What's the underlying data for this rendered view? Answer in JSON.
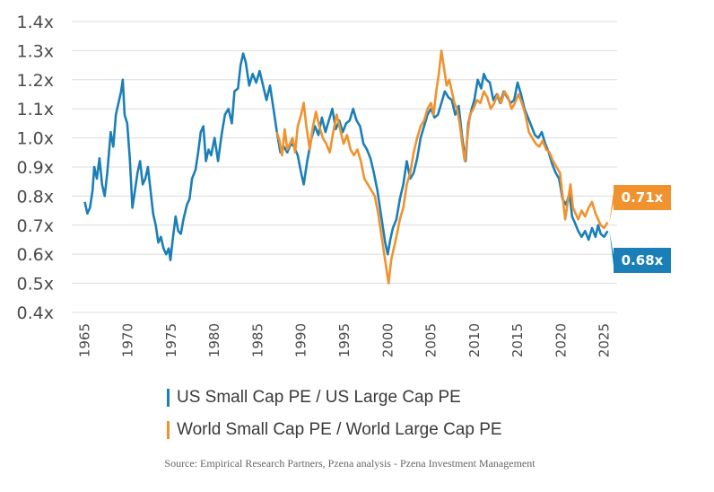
{
  "chart_data": {
    "type": "line",
    "title": "",
    "xlabel": "",
    "ylabel": "",
    "xlim": [
      1963.5,
      2026.5
    ],
    "ylim": [
      0.4,
      1.4
    ],
    "y_ticks": [
      0.4,
      0.5,
      0.6,
      0.7,
      0.8,
      0.9,
      1.0,
      1.1,
      1.2,
      1.3,
      1.4
    ],
    "y_tick_labels": [
      "0.4x",
      "0.5x",
      "0.6x",
      "0.7x",
      "0.8x",
      "0.9x",
      "1.0x",
      "1.1x",
      "1.2x",
      "1.3x",
      "1.4x"
    ],
    "x_ticks": [
      1965,
      1970,
      1975,
      1980,
      1985,
      1990,
      1995,
      2000,
      2005,
      2010,
      2015,
      2020,
      2025
    ],
    "x_tick_labels": [
      "1965",
      "1970",
      "1975",
      "1980",
      "1985",
      "1990",
      "1995",
      "2000",
      "2005",
      "2010",
      "2015",
      "2020",
      "2025"
    ],
    "grid": true,
    "series": [
      {
        "name": "US Small Cap PE / US Large Cap PE",
        "color": "#1b7fb7",
        "points": [
          [
            1965.0,
            0.78
          ],
          [
            1965.3,
            0.74
          ],
          [
            1965.6,
            0.76
          ],
          [
            1965.9,
            0.82
          ],
          [
            1966.1,
            0.9
          ],
          [
            1966.4,
            0.86
          ],
          [
            1966.7,
            0.93
          ],
          [
            1967.0,
            0.84
          ],
          [
            1967.3,
            0.8
          ],
          [
            1967.6,
            0.88
          ],
          [
            1968.0,
            1.02
          ],
          [
            1968.3,
            0.97
          ],
          [
            1968.6,
            1.08
          ],
          [
            1968.9,
            1.12
          ],
          [
            1969.2,
            1.16
          ],
          [
            1969.4,
            1.2
          ],
          [
            1969.6,
            1.08
          ],
          [
            1969.9,
            1.05
          ],
          [
            1970.2,
            0.93
          ],
          [
            1970.5,
            0.76
          ],
          [
            1970.8,
            0.82
          ],
          [
            1971.1,
            0.88
          ],
          [
            1971.4,
            0.92
          ],
          [
            1971.7,
            0.84
          ],
          [
            1972.0,
            0.86
          ],
          [
            1972.3,
            0.9
          ],
          [
            1972.6,
            0.82
          ],
          [
            1972.9,
            0.74
          ],
          [
            1973.2,
            0.7
          ],
          [
            1973.5,
            0.64
          ],
          [
            1973.8,
            0.66
          ],
          [
            1974.1,
            0.62
          ],
          [
            1974.4,
            0.6
          ],
          [
            1974.7,
            0.62
          ],
          [
            1974.9,
            0.58
          ],
          [
            1975.2,
            0.66
          ],
          [
            1975.5,
            0.73
          ],
          [
            1975.8,
            0.68
          ],
          [
            1976.1,
            0.67
          ],
          [
            1976.4,
            0.72
          ],
          [
            1976.8,
            0.77
          ],
          [
            1977.1,
            0.79
          ],
          [
            1977.4,
            0.86
          ],
          [
            1977.8,
            0.89
          ],
          [
            1978.1,
            0.95
          ],
          [
            1978.4,
            1.02
          ],
          [
            1978.7,
            1.04
          ],
          [
            1979.0,
            0.92
          ],
          [
            1979.3,
            0.96
          ],
          [
            1979.6,
            0.94
          ],
          [
            1980.0,
            1.0
          ],
          [
            1980.4,
            0.92
          ],
          [
            1980.8,
            1.01
          ],
          [
            1981.2,
            1.08
          ],
          [
            1981.6,
            1.1
          ],
          [
            1982.0,
            1.05
          ],
          [
            1982.3,
            1.16
          ],
          [
            1982.7,
            1.17
          ],
          [
            1983.0,
            1.25
          ],
          [
            1983.3,
            1.29
          ],
          [
            1983.6,
            1.26
          ],
          [
            1984.0,
            1.18
          ],
          [
            1984.4,
            1.22
          ],
          [
            1984.8,
            1.19
          ],
          [
            1985.2,
            1.23
          ],
          [
            1985.6,
            1.18
          ],
          [
            1986.0,
            1.13
          ],
          [
            1986.4,
            1.18
          ],
          [
            1986.8,
            1.1
          ],
          [
            1987.2,
            1.02
          ],
          [
            1987.6,
            0.95
          ],
          [
            1988.0,
            0.97
          ],
          [
            1988.4,
            0.95
          ],
          [
            1988.8,
            0.98
          ],
          [
            1989.2,
            0.97
          ],
          [
            1989.6,
            0.94
          ],
          [
            1990.0,
            0.88
          ],
          [
            1990.3,
            0.84
          ],
          [
            1990.7,
            0.92
          ],
          [
            1991.2,
            1.0
          ],
          [
            1991.6,
            1.04
          ],
          [
            1992.0,
            1.01
          ],
          [
            1992.4,
            1.07
          ],
          [
            1992.8,
            1.02
          ],
          [
            1993.2,
            1.06
          ],
          [
            1993.6,
            1.1
          ],
          [
            1994.0,
            1.03
          ],
          [
            1994.4,
            1.06
          ],
          [
            1994.8,
            1.02
          ],
          [
            1995.2,
            1.05
          ],
          [
            1995.6,
            1.06
          ],
          [
            1996.0,
            1.1
          ],
          [
            1996.4,
            1.06
          ],
          [
            1996.8,
            1.04
          ],
          [
            1997.2,
            0.98
          ],
          [
            1997.6,
            0.96
          ],
          [
            1998.0,
            0.93
          ],
          [
            1998.4,
            0.88
          ],
          [
            1998.8,
            0.82
          ],
          [
            1999.1,
            0.76
          ],
          [
            1999.4,
            0.7
          ],
          [
            1999.7,
            0.64
          ],
          [
            2000.0,
            0.6
          ],
          [
            2000.3,
            0.65
          ],
          [
            2000.6,
            0.69
          ],
          [
            2001.0,
            0.72
          ],
          [
            2001.4,
            0.79
          ],
          [
            2001.8,
            0.84
          ],
          [
            2002.2,
            0.92
          ],
          [
            2002.6,
            0.86
          ],
          [
            2003.0,
            0.88
          ],
          [
            2003.4,
            0.93
          ],
          [
            2003.8,
            1.0
          ],
          [
            2004.2,
            1.04
          ],
          [
            2004.6,
            1.08
          ],
          [
            2005.0,
            1.1
          ],
          [
            2005.4,
            1.07
          ],
          [
            2005.8,
            1.08
          ],
          [
            2006.2,
            1.12
          ],
          [
            2006.6,
            1.16
          ],
          [
            2007.0,
            1.14
          ],
          [
            2007.4,
            1.13
          ],
          [
            2007.8,
            1.08
          ],
          [
            2008.2,
            1.11
          ],
          [
            2008.6,
            1.0
          ],
          [
            2009.0,
            0.92
          ],
          [
            2009.3,
            1.05
          ],
          [
            2009.7,
            1.1
          ],
          [
            2010.0,
            1.13
          ],
          [
            2010.4,
            1.2
          ],
          [
            2010.8,
            1.17
          ],
          [
            2011.1,
            1.22
          ],
          [
            2011.4,
            1.2
          ],
          [
            2011.8,
            1.19
          ],
          [
            2012.2,
            1.13
          ],
          [
            2012.6,
            1.15
          ],
          [
            2013.0,
            1.12
          ],
          [
            2013.4,
            1.16
          ],
          [
            2013.8,
            1.14
          ],
          [
            2014.2,
            1.12
          ],
          [
            2014.6,
            1.13
          ],
          [
            2015.0,
            1.19
          ],
          [
            2015.4,
            1.15
          ],
          [
            2015.8,
            1.1
          ],
          [
            2016.2,
            1.07
          ],
          [
            2016.6,
            1.04
          ],
          [
            2017.0,
            1.01
          ],
          [
            2017.4,
            1.0
          ],
          [
            2017.8,
            1.02
          ],
          [
            2018.2,
            0.98
          ],
          [
            2018.6,
            0.95
          ],
          [
            2019.0,
            0.91
          ],
          [
            2019.4,
            0.88
          ],
          [
            2019.8,
            0.86
          ],
          [
            2020.2,
            0.79
          ],
          [
            2020.6,
            0.77
          ],
          [
            2021.0,
            0.81
          ],
          [
            2021.3,
            0.73
          ],
          [
            2021.6,
            0.71
          ],
          [
            2022.0,
            0.68
          ],
          [
            2022.4,
            0.66
          ],
          [
            2022.8,
            0.68
          ],
          [
            2023.2,
            0.65
          ],
          [
            2023.6,
            0.69
          ],
          [
            2024.0,
            0.66
          ],
          [
            2024.3,
            0.7
          ],
          [
            2024.6,
            0.67
          ],
          [
            2025.0,
            0.66
          ],
          [
            2025.4,
            0.68
          ]
        ]
      },
      {
        "name": "World Small Cap PE / World Large Cap PE",
        "color": "#f0922e",
        "points": [
          [
            1987.2,
            1.02
          ],
          [
            1987.5,
            0.99
          ],
          [
            1987.8,
            0.94
          ],
          [
            1988.1,
            1.03
          ],
          [
            1988.4,
            0.96
          ],
          [
            1988.7,
            0.98
          ],
          [
            1989.0,
            1.0
          ],
          [
            1989.3,
            0.95
          ],
          [
            1989.6,
            1.04
          ],
          [
            1990.0,
            1.08
          ],
          [
            1990.3,
            1.12
          ],
          [
            1990.6,
            1.04
          ],
          [
            1991.0,
            0.96
          ],
          [
            1991.3,
            1.03
          ],
          [
            1991.7,
            1.09
          ],
          [
            1992.1,
            1.04
          ],
          [
            1992.5,
            1.0
          ],
          [
            1992.9,
            0.98
          ],
          [
            1993.3,
            0.95
          ],
          [
            1993.7,
            1.02
          ],
          [
            1994.1,
            1.08
          ],
          [
            1994.5,
            1.03
          ],
          [
            1994.9,
            0.98
          ],
          [
            1995.3,
            1.01
          ],
          [
            1995.7,
            0.96
          ],
          [
            1996.1,
            0.94
          ],
          [
            1996.5,
            0.96
          ],
          [
            1996.9,
            0.92
          ],
          [
            1997.3,
            0.86
          ],
          [
            1997.7,
            0.84
          ],
          [
            1998.1,
            0.82
          ],
          [
            1998.5,
            0.8
          ],
          [
            1998.9,
            0.74
          ],
          [
            1999.2,
            0.68
          ],
          [
            1999.5,
            0.62
          ],
          [
            1999.8,
            0.56
          ],
          [
            2000.1,
            0.5
          ],
          [
            2000.4,
            0.58
          ],
          [
            2000.7,
            0.62
          ],
          [
            2001.0,
            0.66
          ],
          [
            2001.4,
            0.72
          ],
          [
            2001.8,
            0.76
          ],
          [
            2002.2,
            0.84
          ],
          [
            2002.6,
            0.88
          ],
          [
            2003.0,
            0.95
          ],
          [
            2003.4,
            1.0
          ],
          [
            2003.8,
            1.04
          ],
          [
            2004.2,
            1.06
          ],
          [
            2004.6,
            1.1
          ],
          [
            2005.0,
            1.12
          ],
          [
            2005.3,
            1.08
          ],
          [
            2005.6,
            1.16
          ],
          [
            2005.9,
            1.22
          ],
          [
            2006.2,
            1.3
          ],
          [
            2006.5,
            1.24
          ],
          [
            2006.8,
            1.18
          ],
          [
            2007.1,
            1.2
          ],
          [
            2007.4,
            1.16
          ],
          [
            2007.7,
            1.12
          ],
          [
            2008.0,
            1.1
          ],
          [
            2008.3,
            1.05
          ],
          [
            2008.6,
            0.98
          ],
          [
            2008.9,
            0.92
          ],
          [
            2009.2,
            1.0
          ],
          [
            2009.5,
            1.08
          ],
          [
            2009.9,
            1.1
          ],
          [
            2010.3,
            1.13
          ],
          [
            2010.7,
            1.12
          ],
          [
            2011.1,
            1.16
          ],
          [
            2011.5,
            1.14
          ],
          [
            2011.9,
            1.1
          ],
          [
            2012.3,
            1.12
          ],
          [
            2012.7,
            1.15
          ],
          [
            2013.1,
            1.12
          ],
          [
            2013.5,
            1.16
          ],
          [
            2013.9,
            1.14
          ],
          [
            2014.3,
            1.1
          ],
          [
            2014.7,
            1.12
          ],
          [
            2015.1,
            1.15
          ],
          [
            2015.5,
            1.12
          ],
          [
            2015.9,
            1.08
          ],
          [
            2016.3,
            1.02
          ],
          [
            2016.7,
            1.0
          ],
          [
            2017.1,
            0.98
          ],
          [
            2017.5,
            0.97
          ],
          [
            2017.9,
            0.99
          ],
          [
            2018.3,
            0.96
          ],
          [
            2018.7,
            0.95
          ],
          [
            2019.1,
            0.92
          ],
          [
            2019.5,
            0.9
          ],
          [
            2019.9,
            0.88
          ],
          [
            2020.2,
            0.8
          ],
          [
            2020.5,
            0.72
          ],
          [
            2020.8,
            0.78
          ],
          [
            2021.1,
            0.84
          ],
          [
            2021.4,
            0.76
          ],
          [
            2021.7,
            0.74
          ],
          [
            2022.0,
            0.72
          ],
          [
            2022.4,
            0.75
          ],
          [
            2022.8,
            0.73
          ],
          [
            2023.2,
            0.76
          ],
          [
            2023.6,
            0.78
          ],
          [
            2024.0,
            0.74
          ],
          [
            2024.3,
            0.72
          ],
          [
            2024.6,
            0.7
          ],
          [
            2025.0,
            0.69
          ],
          [
            2025.4,
            0.71
          ]
        ]
      }
    ],
    "annotations": [
      {
        "text": "0.71x",
        "series": 1,
        "color": "#f0922e"
      },
      {
        "text": "0.68x",
        "series": 0,
        "color": "#1b7fb7"
      }
    ]
  },
  "legend": {
    "items": [
      {
        "label": "US Small Cap PE / US Large Cap PE",
        "color": "#1b7fb7"
      },
      {
        "label": "World Small Cap PE / World Large Cap PE",
        "color": "#f0922e"
      }
    ]
  },
  "source": "Source: Empirical Research Partners, Pzena analysis - Pzena Investment Management"
}
